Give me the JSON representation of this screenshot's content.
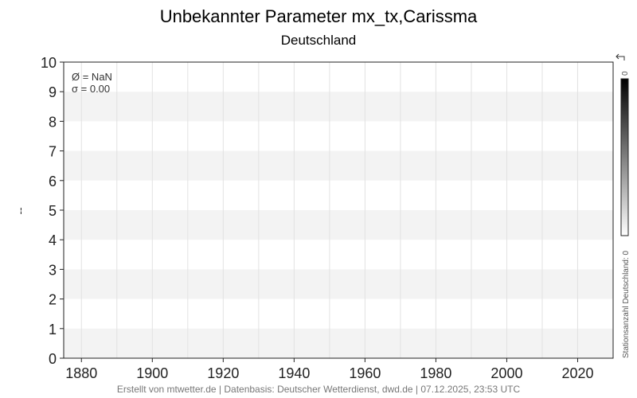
{
  "chart_data": {
    "type": "line",
    "title": "Unbekannter Parameter mx_tx,Carissma",
    "subtitle": "Deutschland",
    "ylabel": "--",
    "xlabel": "",
    "xlim": [
      1875,
      2030
    ],
    "ylim": [
      0,
      10
    ],
    "x_ticks": [
      1880,
      1900,
      1920,
      1940,
      1960,
      1980,
      2000,
      2020
    ],
    "y_ticks": [
      0,
      1,
      2,
      3,
      4,
      5,
      6,
      7,
      8,
      9,
      10
    ],
    "grid": true,
    "series": [],
    "stats": {
      "mean": "Ø = NaN",
      "sigma": "σ = 0.00"
    },
    "colorbar": {
      "label": "Stationsanzahl Deutschland: 0",
      "max_label": "0",
      "colors": [
        "#000000",
        "#ffffff"
      ]
    },
    "footer": "Erstellt von mtwetter.de | Datenbasis: Deutscher Wetterdienst, dwd.de | 07.12.2025, 23:53 UTC"
  }
}
